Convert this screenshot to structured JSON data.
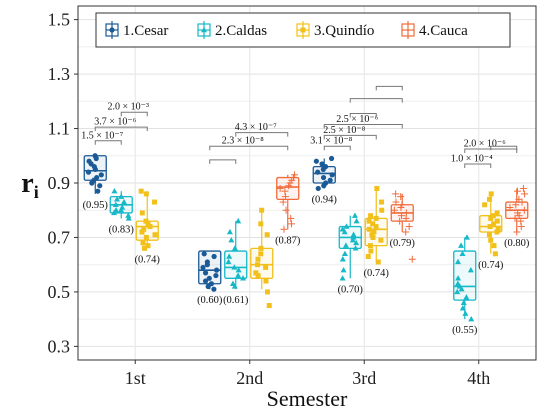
{
  "chart_data": {
    "type": "box",
    "xlabel": "Semester",
    "ylabel": "r",
    "ylabel_subscript": "i",
    "ylim": [
      0.25,
      1.55
    ],
    "y_ticks": [
      "0.3",
      "0.5",
      "0.7",
      "0.9",
      "1.1",
      "1.3",
      "1.5"
    ],
    "categories": [
      "1st",
      "2nd",
      "3rd",
      "4th"
    ],
    "grid": true,
    "legend_position": "top",
    "series": [
      {
        "name": "1.Cesar",
        "color": "#1a5a96",
        "marker": "circle"
      },
      {
        "name": "2.Caldas",
        "color": "#17b8c8",
        "marker": "triangle"
      },
      {
        "name": "3.Quindío",
        "color": "#f2c01a",
        "marker": "square"
      },
      {
        "name": "4.Cauca",
        "color": "#f26b3a",
        "marker": "plus"
      }
    ],
    "boxes": [
      {
        "category": "1st",
        "series": 0,
        "q1": 0.91,
        "median": 0.945,
        "q3": 1.0,
        "wmin": 0.86,
        "wmax": 1.0,
        "label": "(0.95)",
        "points": [
          1.0,
          0.99,
          0.98,
          0.97,
          0.96,
          0.95,
          0.94,
          0.93,
          0.92,
          0.91,
          0.9,
          0.89,
          0.87
        ]
      },
      {
        "category": "1st",
        "series": 1,
        "q1": 0.79,
        "median": 0.82,
        "q3": 0.85,
        "wmin": 0.77,
        "wmax": 0.87,
        "label": "(0.83)",
        "points": [
          0.87,
          0.85,
          0.84,
          0.83,
          0.82,
          0.81,
          0.8,
          0.8,
          0.79,
          0.78,
          0.77
        ]
      },
      {
        "category": "1st",
        "series": 2,
        "q1": 0.69,
        "median": 0.74,
        "q3": 0.76,
        "wmin": 0.66,
        "wmax": 0.87,
        "label": "(0.74)",
        "points": [
          0.87,
          0.86,
          0.83,
          0.79,
          0.76,
          0.75,
          0.74,
          0.73,
          0.72,
          0.71,
          0.7,
          0.68,
          0.67,
          0.66
        ]
      },
      {
        "category": "2nd",
        "series": 0,
        "q1": 0.53,
        "median": 0.58,
        "q3": 0.65,
        "wmin": 0.51,
        "wmax": 0.65,
        "label": "(0.60)",
        "points": [
          0.64,
          0.63,
          0.61,
          0.6,
          0.59,
          0.58,
          0.57,
          0.56,
          0.55,
          0.54,
          0.53,
          0.52,
          0.51
        ]
      },
      {
        "category": "2nd",
        "series": 1,
        "q1": 0.55,
        "median": 0.59,
        "q3": 0.65,
        "wmin": 0.51,
        "wmax": 0.76,
        "label": "(0.61)",
        "points": [
          0.76,
          0.72,
          0.69,
          0.66,
          0.63,
          0.61,
          0.59,
          0.58,
          0.56,
          0.55,
          0.53,
          0.52
        ]
      },
      {
        "category": "2nd",
        "series": 2,
        "q1": 0.55,
        "median": 0.6,
        "q3": 0.66,
        "wmin": 0.51,
        "wmax": 0.8,
        "label": "",
        "points": [
          0.8,
          0.75,
          0.71,
          0.66,
          0.64,
          0.62,
          0.6,
          0.59,
          0.57,
          0.56,
          0.54,
          0.5,
          0.45
        ]
      },
      {
        "category": "2nd",
        "series": 3,
        "q1": 0.84,
        "median": 0.885,
        "q3": 0.92,
        "wmin": 0.73,
        "wmax": 0.93,
        "label": "(0.87)",
        "points": [
          0.93,
          0.92,
          0.91,
          0.9,
          0.89,
          0.88,
          0.87,
          0.85,
          0.83,
          0.8,
          0.77,
          0.75,
          0.73
        ]
      },
      {
        "category": "3rd",
        "series": 0,
        "q1": 0.9,
        "median": 0.935,
        "q3": 0.96,
        "wmin": 0.88,
        "wmax": 0.99,
        "label": "(0.94)",
        "points": [
          0.99,
          0.98,
          0.97,
          0.96,
          0.95,
          0.94,
          0.93,
          0.92,
          0.91,
          0.9,
          0.89,
          0.88
        ]
      },
      {
        "category": "3rd",
        "series": 1,
        "q1": 0.66,
        "median": 0.7,
        "q3": 0.74,
        "wmin": 0.55,
        "wmax": 0.78,
        "label": "(0.70)",
        "points": [
          0.78,
          0.76,
          0.74,
          0.73,
          0.72,
          0.71,
          0.7,
          0.69,
          0.68,
          0.67,
          0.66,
          0.64,
          0.62,
          0.58,
          0.55
        ]
      },
      {
        "category": "3rd",
        "series": 2,
        "q1": 0.67,
        "median": 0.73,
        "q3": 0.77,
        "wmin": 0.61,
        "wmax": 0.88,
        "label": "(0.74)",
        "points": [
          0.88,
          0.83,
          0.8,
          0.78,
          0.77,
          0.76,
          0.75,
          0.74,
          0.73,
          0.72,
          0.71,
          0.7,
          0.69,
          0.67,
          0.65,
          0.63,
          0.61
        ]
      },
      {
        "category": "3rd",
        "series": 3,
        "q1": 0.76,
        "median": 0.79,
        "q3": 0.82,
        "wmin": 0.72,
        "wmax": 0.86,
        "label": "(0.79)",
        "points": [
          0.86,
          0.85,
          0.83,
          0.82,
          0.81,
          0.8,
          0.79,
          0.78,
          0.77,
          0.76,
          0.74,
          0.72
        ],
        "outliers": [
          0.62
        ]
      },
      {
        "category": "4th",
        "series": 1,
        "q1": 0.47,
        "median": 0.52,
        "q3": 0.65,
        "wmin": 0.4,
        "wmax": 0.7,
        "label": "(0.55)",
        "points": [
          0.7,
          0.67,
          0.64,
          0.61,
          0.58,
          0.55,
          0.53,
          0.52,
          0.51,
          0.5,
          0.48,
          0.46,
          0.44,
          0.42,
          0.4
        ]
      },
      {
        "category": "4th",
        "series": 2,
        "q1": 0.72,
        "median": 0.74,
        "q3": 0.78,
        "wmin": 0.64,
        "wmax": 0.86,
        "label": "(0.74)",
        "points": [
          0.86,
          0.84,
          0.82,
          0.79,
          0.78,
          0.77,
          0.76,
          0.75,
          0.74,
          0.73,
          0.72,
          0.71,
          0.69,
          0.67,
          0.64
        ]
      },
      {
        "category": "4th",
        "series": 3,
        "q1": 0.77,
        "median": 0.8,
        "q3": 0.83,
        "wmin": 0.72,
        "wmax": 0.88,
        "label": "(0.80)",
        "points": [
          0.88,
          0.87,
          0.86,
          0.84,
          0.83,
          0.82,
          0.81,
          0.8,
          0.79,
          0.78,
          0.77,
          0.76,
          0.74,
          0.72
        ]
      }
    ],
    "comparisons": [
      {
        "category": "1st",
        "from": 0,
        "to": 1,
        "y": 1.055,
        "label": "1.5 × 10⁻⁷"
      },
      {
        "category": "1st",
        "from": 0,
        "to": 2,
        "y": 1.105,
        "label": "3.7 × 10⁻⁶"
      },
      {
        "category": "1st",
        "from": 1,
        "to": 2,
        "y": 1.16,
        "label": "2.0 × 10⁻³"
      },
      {
        "category": "2nd",
        "from": 0,
        "to": 1,
        "y": 0.985,
        "label": ""
      },
      {
        "category": "2nd",
        "from": 0,
        "to": 3,
        "y": 1.035,
        "label": "2.3 × 10⁻⁸"
      },
      {
        "category": "2nd",
        "from": 1,
        "to": 3,
        "y": 1.085,
        "label": "4.3 × 10⁻⁷"
      },
      {
        "category": "3rd",
        "from": 0,
        "to": 1,
        "y": 1.035,
        "label": "3.1 × 10⁻⁸"
      },
      {
        "category": "3rd",
        "from": 0,
        "to": 2,
        "y": 1.075,
        "label": "2.5 × 10⁻⁸"
      },
      {
        "category": "3rd",
        "from": 0,
        "to": 3,
        "y": 1.115,
        "label": "2.5 × 10⁻⁶"
      },
      {
        "category": "3rd",
        "from": 1,
        "to": 2,
        "y": 1.155,
        "label": ""
      },
      {
        "category": "3rd",
        "from": 1,
        "to": 3,
        "y": 1.21,
        "label": ""
      },
      {
        "category": "3rd",
        "from": 2,
        "to": 3,
        "y": 1.255,
        "label": ""
      },
      {
        "category": "4th",
        "from": 1,
        "to": 2,
        "y": 0.97,
        "label": "1.0 × 10⁻⁴"
      },
      {
        "category": "4th",
        "from": 1,
        "to": 3,
        "y": 1.025,
        "label": "2.0 × 10⁻⁶"
      },
      {
        "category": "4th",
        "from": 2,
        "to": 3,
        "y": 1.035,
        "label": ""
      }
    ]
  }
}
